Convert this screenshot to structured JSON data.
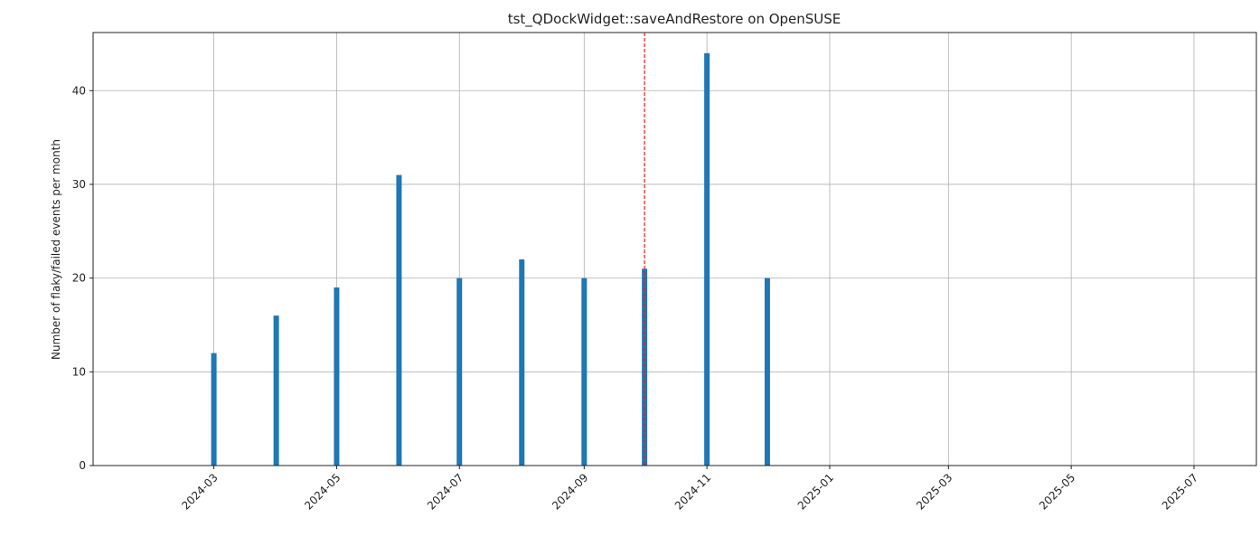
{
  "chart_data": {
    "type": "bar",
    "title": "tst_QDockWidget::saveAndRestore on OpenSUSE",
    "y_label": "Number of flaky/failed events per month",
    "x": [
      "2024-03",
      "2024-04",
      "2024-05",
      "2024-06",
      "2024-07",
      "2024-08",
      "2024-09",
      "2024-10",
      "2024-11",
      "2024-12"
    ],
    "values": [
      12,
      16,
      19,
      31,
      20,
      22,
      20,
      21,
      44,
      20
    ],
    "color": "#1f77b4",
    "xlim": [
      "2024-01",
      "2025-08"
    ],
    "xticks": [
      "2024-03",
      "2024-05",
      "2024-07",
      "2024-09",
      "2024-11",
      "2025-01",
      "2025-03",
      "2025-05",
      "2025-07"
    ],
    "ylim": [
      0,
      46.2
    ],
    "yticks": [
      0,
      10,
      20,
      30,
      40
    ],
    "grid": true,
    "vline": {
      "x": "2024-10",
      "color": "#e41a1c"
    }
  }
}
